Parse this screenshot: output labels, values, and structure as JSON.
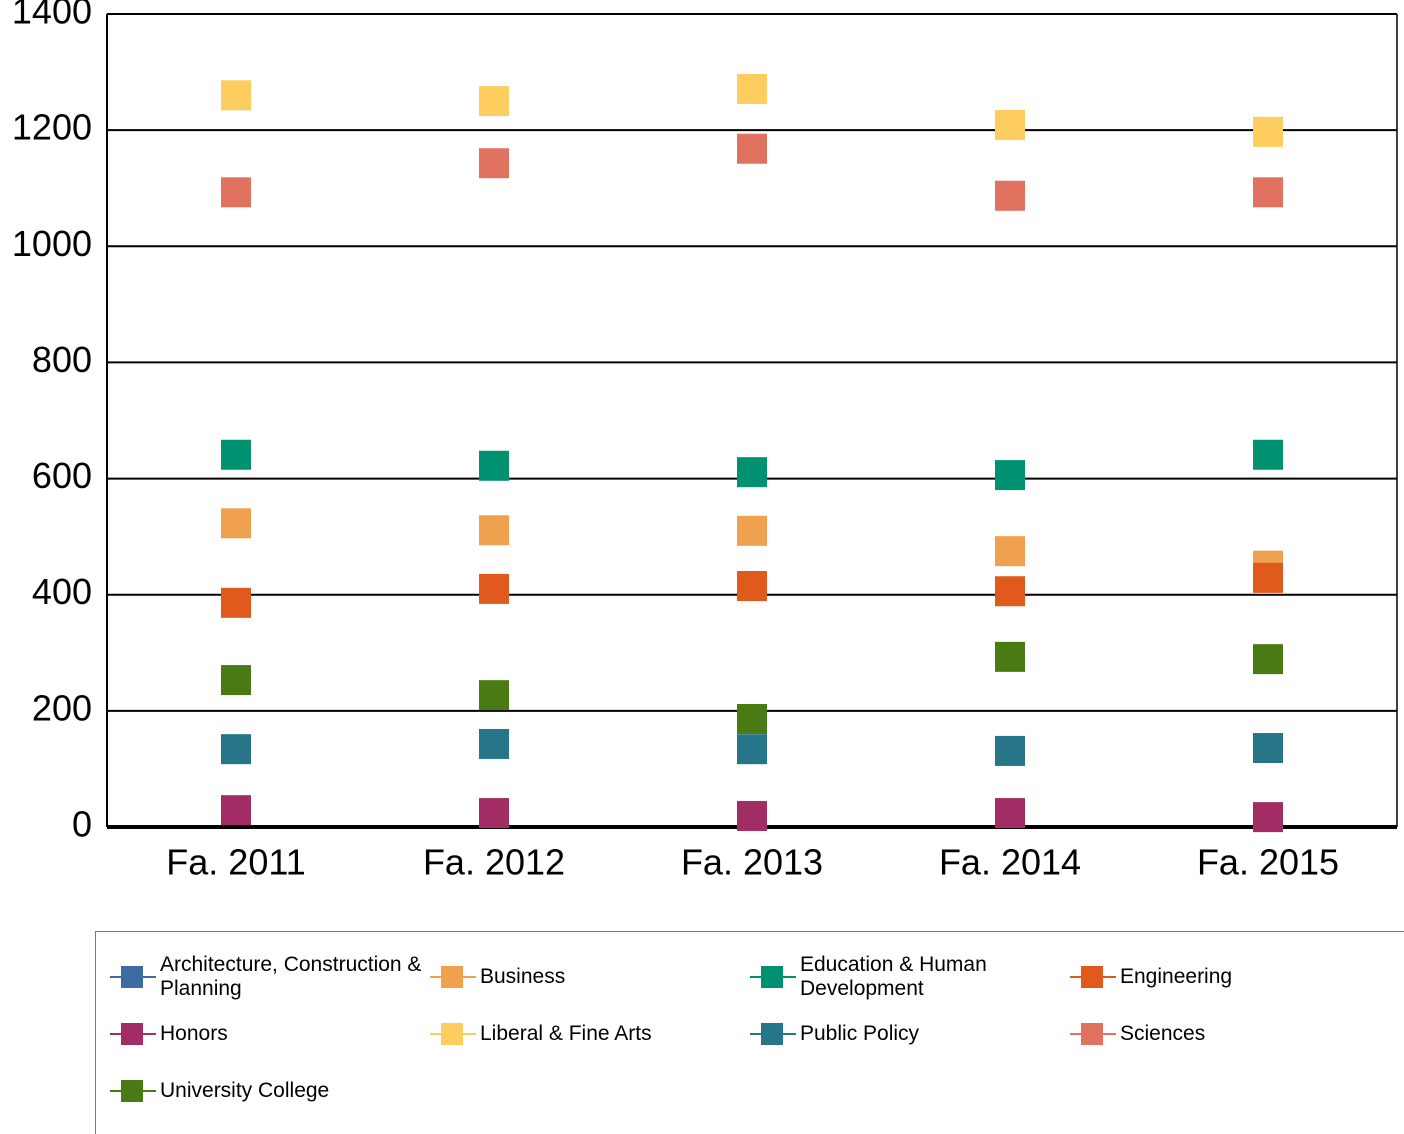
{
  "chart_data": {
    "type": "scatter",
    "categories": [
      "Fa. 2011",
      "Fa. 2012",
      "Fa. 2013",
      "Fa. 2014",
      "Fa. 2015"
    ],
    "series": [
      {
        "name": "Architecture, Construction & Planning",
        "color": "#3f6ba5",
        "values": [
          null,
          null,
          null,
          null,
          null
        ]
      },
      {
        "name": "Business",
        "color": "#f0a150",
        "values": [
          523,
          511,
          510,
          475,
          450
        ]
      },
      {
        "name": "Education & Human Development",
        "color": "#009270",
        "values": [
          641,
          622,
          611,
          606,
          641
        ]
      },
      {
        "name": "Engineering",
        "color": "#e05a1e",
        "values": [
          386,
          410,
          415,
          406,
          429
        ]
      },
      {
        "name": "Honors",
        "color": "#a22d65",
        "values": [
          29,
          24,
          19,
          24,
          17
        ]
      },
      {
        "name": "Liberal & Fine Arts",
        "color": "#fdce5f",
        "values": [
          1260,
          1250,
          1271,
          1209,
          1197
        ]
      },
      {
        "name": "Public Policy",
        "color": "#277589",
        "values": [
          134,
          143,
          134,
          131,
          136
        ]
      },
      {
        "name": "Sciences",
        "color": "#e0725f",
        "values": [
          1093,
          1143,
          1168,
          1087,
          1093
        ]
      },
      {
        "name": "University College",
        "color": "#4a7a14",
        "values": [
          253,
          227,
          186,
          293,
          289
        ]
      }
    ],
    "ylim": [
      0,
      1400
    ],
    "yticks": [
      0,
      200,
      400,
      600,
      800,
      1000,
      1200,
      1400
    ],
    "grid": true
  }
}
